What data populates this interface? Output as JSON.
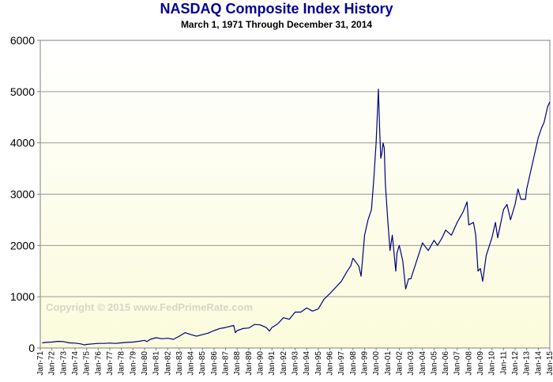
{
  "chart_data": {
    "type": "line",
    "title": "NASDAQ Composite Index History",
    "subtitle": "March 1, 1971  Through  December 31, 2014",
    "watermark": "Copyright © 2015 www.FedPrimeRate.com",
    "xlabel": "",
    "ylabel": "",
    "ylim": [
      0,
      6000
    ],
    "yticks": [
      0,
      1000,
      2000,
      3000,
      4000,
      5000,
      6000
    ],
    "ytick_labels": [
      "0",
      "1000",
      "2000",
      "3000",
      "4000",
      "5000",
      "6000"
    ],
    "xlim": [
      1971.0,
      2015.0
    ],
    "xtick_labels": [
      "Jan-71",
      "Jan-72",
      "Jan-73",
      "Jan-74",
      "Jan-75",
      "Jan-76",
      "Jan-77",
      "Jan-78",
      "Jan-79",
      "Jan-80",
      "Jan-81",
      "Jan-82",
      "Jan-83",
      "Jan-84",
      "Jan-85",
      "Jan-86",
      "Jan-87",
      "Jan-88",
      "Jan-89",
      "Jan-90",
      "Jan-91",
      "Jan-92",
      "Jan-93",
      "Jan-94",
      "Jan-95",
      "Jan-96",
      "Jan-97",
      "Jan-98",
      "Jan-99",
      "Jan-00",
      "Jan-01",
      "Jan-02",
      "Jan-03",
      "Jan-04",
      "Jan-05",
      "Jan-06",
      "Jan-07",
      "Jan-08",
      "Jan-09",
      "Jan-10",
      "Jan-11",
      "Jan-12",
      "Jan-13",
      "Jan-14",
      "Jan-15"
    ],
    "grid": true,
    "line_color": "#000080",
    "series": [
      {
        "x": [
          1971.17,
          1971.5,
          1972.0,
          1972.5,
          1973.0,
          1973.5,
          1974.0,
          1974.5,
          1974.8,
          1975.0,
          1975.5,
          1976.0,
          1976.5,
          1977.0,
          1977.5,
          1978.0,
          1978.5,
          1979.0,
          1979.5,
          1980.0,
          1980.2,
          1980.5,
          1981.0,
          1981.5,
          1982.0,
          1982.5,
          1983.0,
          1983.5,
          1984.0,
          1984.5,
          1985.0,
          1985.5,
          1986.0,
          1986.5,
          1987.0,
          1987.7,
          1987.85,
          1988.0,
          1988.5,
          1989.0,
          1989.5,
          1990.0,
          1990.5,
          1990.8,
          1991.0,
          1991.5,
          1992.0,
          1992.5,
          1993.0,
          1993.5,
          1994.0,
          1994.5,
          1995.0,
          1995.5,
          1996.0,
          1996.5,
          1997.0,
          1997.5,
          1997.8,
          1998.0,
          1998.5,
          1998.7,
          1999.0,
          1999.3,
          1999.6,
          1999.8,
          2000.0,
          2000.2,
          2000.3,
          2000.4,
          2000.5,
          2000.6,
          2000.7,
          2000.8,
          2001.0,
          2001.2,
          2001.4,
          2001.7,
          2001.8,
          2002.0,
          2002.3,
          2002.55,
          2002.8,
          2003.0,
          2003.5,
          2004.0,
          2004.5,
          2005.0,
          2005.3,
          2005.7,
          2006.0,
          2006.5,
          2007.0,
          2007.5,
          2007.85,
          2008.0,
          2008.4,
          2008.6,
          2008.8,
          2009.0,
          2009.2,
          2009.5,
          2010.0,
          2010.3,
          2010.5,
          2011.0,
          2011.3,
          2011.6,
          2012.0,
          2012.25,
          2012.5,
          2012.9,
          2013.0,
          2013.5,
          2014.0,
          2014.3,
          2014.5,
          2014.8,
          2015.0
        ],
        "values": [
          100,
          110,
          115,
          130,
          125,
          100,
          95,
          80,
          60,
          70,
          80,
          90,
          90,
          95,
          90,
          100,
          110,
          115,
          130,
          150,
          125,
          170,
          200,
          180,
          190,
          170,
          230,
          300,
          260,
          230,
          260,
          290,
          340,
          380,
          400,
          440,
          300,
          340,
          380,
          390,
          460,
          450,
          400,
          330,
          400,
          470,
          590,
          560,
          700,
          700,
          780,
          720,
          760,
          950,
          1060,
          1180,
          1300,
          1500,
          1600,
          1750,
          1600,
          1400,
          2200,
          2500,
          2700,
          3300,
          4000,
          5050,
          4300,
          3700,
          3800,
          4000,
          3900,
          3200,
          2500,
          1900,
          2200,
          1500,
          1850,
          2000,
          1700,
          1150,
          1350,
          1350,
          1700,
          2050,
          1900,
          2100,
          2000,
          2150,
          2300,
          2200,
          2450,
          2650,
          2850,
          2400,
          2450,
          2200,
          1500,
          1550,
          1300,
          1800,
          2150,
          2450,
          2150,
          2700,
          2800,
          2500,
          2800,
          3100,
          2900,
          2900,
          3100,
          3600,
          4100,
          4300,
          4400,
          4700,
          4800
        ]
      }
    ]
  }
}
